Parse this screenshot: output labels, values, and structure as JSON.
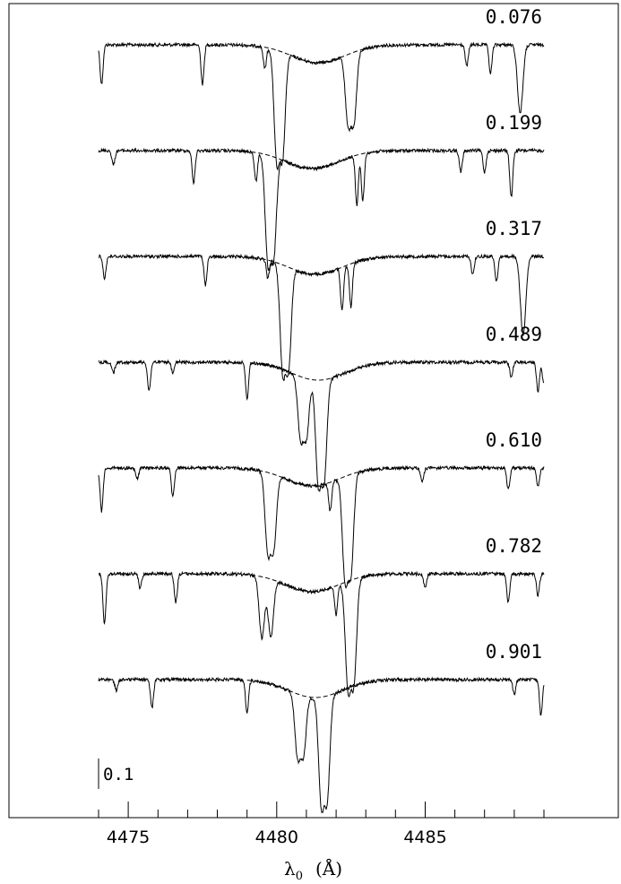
{
  "chart_data": {
    "type": "line",
    "title": "",
    "xlabel": "λ",
    "xlabel_subscript": "0",
    "xlabel_unit": "(Å)",
    "xlim": [
      4471.5,
      4493.2
    ],
    "xticks": [
      4475,
      4480,
      4485
    ],
    "xtick_labels": [
      "4475",
      "4480",
      "4485"
    ],
    "x_minor_step": 1,
    "scale_bar_label": "0.1",
    "scale_bar_value": 0.1,
    "series": [
      {
        "phase_label": "0.076",
        "offset_rank": 0,
        "lines": [
          {
            "x": 4474.1,
            "depth": 0.11
          },
          {
            "x": 4477.5,
            "depth": 0.11
          },
          {
            "x": 4479.6,
            "depth": 0.06
          },
          {
            "x": 4480.0,
            "depth": 0.3
          },
          {
            "x": 4480.2,
            "depth": 0.28
          },
          {
            "x": 4482.4,
            "depth": 0.19
          },
          {
            "x": 4482.6,
            "depth": 0.19
          },
          {
            "x": 4486.4,
            "depth": 0.06
          },
          {
            "x": 4487.2,
            "depth": 0.08
          },
          {
            "x": 4488.2,
            "depth": 0.19
          }
        ],
        "broad_depth": 0.05,
        "broad_center": 4481.4
      },
      {
        "phase_label": "0.199",
        "offset_rank": 1,
        "lines": [
          {
            "x": 4474.5,
            "depth": 0.04
          },
          {
            "x": 4477.2,
            "depth": 0.09
          },
          {
            "x": 4479.3,
            "depth": 0.08
          },
          {
            "x": 4479.7,
            "depth": 0.29
          },
          {
            "x": 4479.9,
            "depth": 0.27
          },
          {
            "x": 4482.7,
            "depth": 0.14
          },
          {
            "x": 4482.9,
            "depth": 0.13
          },
          {
            "x": 4486.2,
            "depth": 0.06
          },
          {
            "x": 4487.0,
            "depth": 0.06
          },
          {
            "x": 4487.9,
            "depth": 0.13
          }
        ],
        "broad_depth": 0.05,
        "broad_center": 4481.2
      },
      {
        "phase_label": "0.317",
        "offset_rank": 2,
        "lines": [
          {
            "x": 4474.2,
            "depth": 0.06
          },
          {
            "x": 4477.6,
            "depth": 0.08
          },
          {
            "x": 4479.7,
            "depth": 0.05
          },
          {
            "x": 4480.2,
            "depth": 0.29
          },
          {
            "x": 4480.4,
            "depth": 0.27
          },
          {
            "x": 4482.2,
            "depth": 0.12
          },
          {
            "x": 4482.5,
            "depth": 0.12
          },
          {
            "x": 4486.6,
            "depth": 0.05
          },
          {
            "x": 4487.4,
            "depth": 0.07
          },
          {
            "x": 4488.3,
            "depth": 0.22
          }
        ],
        "broad_depth": 0.05,
        "broad_center": 4481.3
      },
      {
        "phase_label": "0.489",
        "offset_rank": 3,
        "lines": [
          {
            "x": 4474.5,
            "depth": 0.03
          },
          {
            "x": 4475.7,
            "depth": 0.08
          },
          {
            "x": 4476.5,
            "depth": 0.03
          },
          {
            "x": 4479.0,
            "depth": 0.1
          },
          {
            "x": 4480.8,
            "depth": 0.17
          },
          {
            "x": 4481.0,
            "depth": 0.16
          },
          {
            "x": 4481.4,
            "depth": 0.28
          },
          {
            "x": 4481.6,
            "depth": 0.27
          },
          {
            "x": 4487.9,
            "depth": 0.04
          },
          {
            "x": 4488.8,
            "depth": 0.08
          },
          {
            "x": 4489.0,
            "depth": 0.06
          }
        ],
        "broad_depth": 0.05,
        "broad_center": 4481.4
      },
      {
        "phase_label": "0.610",
        "offset_rank": 4,
        "lines": [
          {
            "x": 4474.1,
            "depth": 0.12
          },
          {
            "x": 4475.3,
            "depth": 0.03
          },
          {
            "x": 4476.5,
            "depth": 0.08
          },
          {
            "x": 4479.7,
            "depth": 0.22
          },
          {
            "x": 4479.9,
            "depth": 0.2
          },
          {
            "x": 4481.8,
            "depth": 0.08
          },
          {
            "x": 4482.3,
            "depth": 0.28
          },
          {
            "x": 4482.5,
            "depth": 0.27
          },
          {
            "x": 4484.9,
            "depth": 0.04
          },
          {
            "x": 4487.8,
            "depth": 0.06
          },
          {
            "x": 4488.8,
            "depth": 0.05
          }
        ],
        "broad_depth": 0.05,
        "broad_center": 4481.2
      },
      {
        "phase_label": "0.782",
        "offset_rank": 5,
        "lines": [
          {
            "x": 4474.2,
            "depth": 0.14
          },
          {
            "x": 4475.4,
            "depth": 0.04
          },
          {
            "x": 4476.6,
            "depth": 0.08
          },
          {
            "x": 4479.5,
            "depth": 0.17
          },
          {
            "x": 4479.8,
            "depth": 0.16
          },
          {
            "x": 4482.0,
            "depth": 0.08
          },
          {
            "x": 4482.4,
            "depth": 0.29
          },
          {
            "x": 4482.6,
            "depth": 0.28
          },
          {
            "x": 4485.0,
            "depth": 0.04
          },
          {
            "x": 4487.8,
            "depth": 0.08
          },
          {
            "x": 4488.8,
            "depth": 0.06
          }
        ],
        "broad_depth": 0.05,
        "broad_center": 4481.2
      },
      {
        "phase_label": "0.901",
        "offset_rank": 6,
        "lines": [
          {
            "x": 4474.6,
            "depth": 0.03
          },
          {
            "x": 4475.8,
            "depth": 0.08
          },
          {
            "x": 4479.0,
            "depth": 0.09
          },
          {
            "x": 4480.7,
            "depth": 0.17
          },
          {
            "x": 4480.9,
            "depth": 0.16
          },
          {
            "x": 4481.5,
            "depth": 0.29
          },
          {
            "x": 4481.7,
            "depth": 0.28
          },
          {
            "x": 4488.0,
            "depth": 0.04
          },
          {
            "x": 4488.9,
            "depth": 0.1
          }
        ],
        "broad_depth": 0.05,
        "broad_center": 4481.3
      }
    ]
  }
}
